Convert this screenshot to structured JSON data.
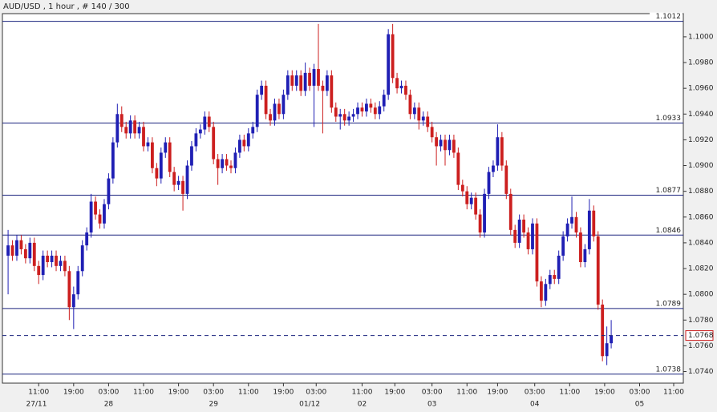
{
  "chart_data": {
    "type": "candlestick",
    "title": "AUD/USD , 1 hour , # 140 / 300",
    "up_color": "#1f1fb4",
    "down_color": "#cc1f1f",
    "level_color": "#1a237e",
    "ylim": [
      1.0731,
      1.1018
    ],
    "xlim": [
      -1.3,
      154.5
    ],
    "yticks": [
      {
        "value": 1.074,
        "label": "1.0740"
      },
      {
        "value": 1.076,
        "label": "1.0760"
      },
      {
        "value": 1.078,
        "label": "1.0780"
      },
      {
        "value": 1.08,
        "label": "1.0800"
      },
      {
        "value": 1.082,
        "label": "1.0820"
      },
      {
        "value": 1.084,
        "label": "1.0840"
      },
      {
        "value": 1.086,
        "label": "1.0860"
      },
      {
        "value": 1.088,
        "label": "1.0880"
      },
      {
        "value": 1.09,
        "label": "1.0900"
      },
      {
        "value": 1.092,
        "label": "1.0920"
      },
      {
        "value": 1.094,
        "label": "1.0940"
      },
      {
        "value": 1.096,
        "label": "1.0960"
      },
      {
        "value": 1.098,
        "label": "1.0980"
      },
      {
        "value": 1.1,
        "label": "1.1000"
      }
    ],
    "xticks": [
      {
        "value": 7,
        "label": "11:00"
      },
      {
        "value": 15,
        "label": "19:00"
      },
      {
        "value": 23,
        "label": "03:00"
      },
      {
        "value": 31,
        "label": "11:00"
      },
      {
        "value": 39,
        "label": "19:00"
      },
      {
        "value": 47,
        "label": "03:00"
      },
      {
        "value": 55,
        "label": "11:00"
      },
      {
        "value": 63,
        "label": "19:00"
      },
      {
        "value": 70.5,
        "label": "03:00"
      },
      {
        "value": 81,
        "label": "11:00"
      },
      {
        "value": 88.5,
        "label": "19:00"
      },
      {
        "value": 97,
        "label": "03:00"
      },
      {
        "value": 105,
        "label": "11:00"
      },
      {
        "value": 112,
        "label": "19:00"
      },
      {
        "value": 120.5,
        "label": "03:00"
      },
      {
        "value": 128.5,
        "label": "11:00"
      },
      {
        "value": 136.5,
        "label": "19:00"
      },
      {
        "value": 144.5,
        "label": "03:00"
      },
      {
        "value": 152.3,
        "label": "11:00"
      }
    ],
    "date_labels": [
      {
        "value": 6.5,
        "label": "27/11"
      },
      {
        "value": 23,
        "label": "28"
      },
      {
        "value": 47,
        "label": "29"
      },
      {
        "value": 69,
        "label": "01/12"
      },
      {
        "value": 81,
        "label": "02"
      },
      {
        "value": 97,
        "label": "03"
      },
      {
        "value": 120.5,
        "label": "04"
      },
      {
        "value": 144.5,
        "label": "05"
      }
    ],
    "levels": [
      1.1012,
      1.0933,
      1.0877,
      1.0846,
      1.0789,
      1.0738
    ],
    "last_price": 1.0768,
    "ohlc": [
      [
        1.083,
        1.085,
        1.08,
        1.0838
      ],
      [
        1.0838,
        1.0842,
        1.0826,
        1.083
      ],
      [
        1.083,
        1.0846,
        1.0826,
        1.0842
      ],
      [
        1.0842,
        1.0846,
        1.0831,
        1.0835
      ],
      [
        1.0835,
        1.0839,
        1.0824,
        1.0828
      ],
      [
        1.0828,
        1.0844,
        1.0824,
        1.084
      ],
      [
        1.084,
        1.0844,
        1.0818,
        1.0822
      ],
      [
        1.0822,
        1.0826,
        1.0808,
        1.0815
      ],
      [
        1.0815,
        1.0834,
        1.0811,
        1.083
      ],
      [
        1.083,
        1.0834,
        1.0821,
        1.0825
      ],
      [
        1.0825,
        1.0834,
        1.0821,
        1.083
      ],
      [
        1.083,
        1.0834,
        1.0818,
        1.0822
      ],
      [
        1.0822,
        1.083,
        1.0818,
        1.0826
      ],
      [
        1.0826,
        1.083,
        1.0814,
        1.0818
      ],
      [
        1.0818,
        1.0822,
        1.078,
        1.079
      ],
      [
        1.079,
        1.0806,
        1.0773,
        1.08
      ],
      [
        1.08,
        1.0822,
        1.0796,
        1.0818
      ],
      [
        1.0818,
        1.0842,
        1.0814,
        1.0838
      ],
      [
        1.0838,
        1.0852,
        1.0834,
        1.0848
      ],
      [
        1.0848,
        1.0878,
        1.0844,
        1.0872
      ],
      [
        1.0872,
        1.0876,
        1.0858,
        1.0862
      ],
      [
        1.0862,
        1.0866,
        1.0851,
        1.0855
      ],
      [
        1.0855,
        1.0874,
        1.0851,
        1.087
      ],
      [
        1.087,
        1.0894,
        1.0866,
        1.089
      ],
      [
        1.089,
        1.0922,
        1.0886,
        1.0918
      ],
      [
        1.0918,
        1.0948,
        1.0914,
        1.094
      ],
      [
        1.094,
        1.0946,
        1.0926,
        1.093
      ],
      [
        1.093,
        1.0934,
        1.0921,
        1.0925
      ],
      [
        1.0925,
        1.0939,
        1.0921,
        1.0935
      ],
      [
        1.0935,
        1.0939,
        1.0921,
        1.0925
      ],
      [
        1.0925,
        1.0934,
        1.0921,
        1.093
      ],
      [
        1.093,
        1.0934,
        1.0911,
        1.0915
      ],
      [
        1.0915,
        1.0922,
        1.0911,
        1.0918
      ],
      [
        1.0918,
        1.0922,
        1.0894,
        1.0898
      ],
      [
        1.0898,
        1.0902,
        1.0884,
        1.089
      ],
      [
        1.089,
        1.0914,
        1.0886,
        1.091
      ],
      [
        1.091,
        1.0922,
        1.0906,
        1.0918
      ],
      [
        1.0918,
        1.0922,
        1.0891,
        1.0895
      ],
      [
        1.0895,
        1.0899,
        1.088,
        1.0885
      ],
      [
        1.0885,
        1.0892,
        1.0881,
        1.0888
      ],
      [
        1.0888,
        1.0892,
        1.0865,
        1.0878
      ],
      [
        1.0878,
        1.0904,
        1.0874,
        1.09
      ],
      [
        1.09,
        1.0919,
        1.0896,
        1.0915
      ],
      [
        1.0915,
        1.0929,
        1.0911,
        1.0925
      ],
      [
        1.0925,
        1.0932,
        1.0921,
        1.0928
      ],
      [
        1.0928,
        1.0942,
        1.0924,
        1.0938
      ],
      [
        1.0938,
        1.0942,
        1.0926,
        1.093
      ],
      [
        1.093,
        1.0934,
        1.0901,
        1.0905
      ],
      [
        1.0905,
        1.0909,
        1.0885,
        1.0898
      ],
      [
        1.0898,
        1.0909,
        1.0894,
        1.0905
      ],
      [
        1.0905,
        1.0909,
        1.0896,
        1.09
      ],
      [
        1.09,
        1.0904,
        1.0894,
        1.0898
      ],
      [
        1.0898,
        1.0914,
        1.0894,
        1.091
      ],
      [
        1.091,
        1.0924,
        1.0906,
        1.092
      ],
      [
        1.092,
        1.0924,
        1.0911,
        1.0915
      ],
      [
        1.0915,
        1.0929,
        1.0911,
        1.0925
      ],
      [
        1.0925,
        1.0934,
        1.0921,
        1.093
      ],
      [
        1.093,
        1.0959,
        1.0926,
        1.0955
      ],
      [
        1.0955,
        1.0966,
        1.0951,
        1.0962
      ],
      [
        1.0962,
        1.0966,
        1.0936,
        1.094
      ],
      [
        1.094,
        1.0944,
        1.0931,
        1.0935
      ],
      [
        1.0935,
        1.0952,
        1.0931,
        1.0948
      ],
      [
        1.0948,
        1.0952,
        1.0936,
        1.094
      ],
      [
        1.094,
        1.0959,
        1.0936,
        1.0955
      ],
      [
        1.0955,
        1.0974,
        1.0951,
        1.097
      ],
      [
        1.097,
        1.0974,
        1.0958,
        1.0962
      ],
      [
        1.0962,
        1.0974,
        1.0958,
        1.097
      ],
      [
        1.097,
        1.0974,
        1.0954,
        1.0958
      ],
      [
        1.0958,
        1.098,
        1.0954,
        1.0972
      ],
      [
        1.0972,
        1.0976,
        1.0958,
        1.0962
      ],
      [
        1.0962,
        1.0979,
        1.093,
        1.0975
      ],
      [
        1.0975,
        1.101,
        1.0958,
        1.0962
      ],
      [
        1.0962,
        1.0966,
        1.0925,
        1.0958
      ],
      [
        1.0958,
        1.0974,
        1.0954,
        1.097
      ],
      [
        1.097,
        1.0974,
        1.0941,
        1.0945
      ],
      [
        1.0945,
        1.0949,
        1.0934,
        1.0938
      ],
      [
        1.0938,
        1.0944,
        1.0928,
        1.094
      ],
      [
        1.094,
        1.0944,
        1.0931,
        1.0935
      ],
      [
        1.0935,
        1.0942,
        1.0931,
        1.0938
      ],
      [
        1.0938,
        1.0944,
        1.0934,
        1.094
      ],
      [
        1.094,
        1.0949,
        1.0936,
        1.0945
      ],
      [
        1.0945,
        1.0949,
        1.0938,
        1.0942
      ],
      [
        1.0942,
        1.0952,
        1.0938,
        1.0948
      ],
      [
        1.0948,
        1.0952,
        1.0941,
        1.0945
      ],
      [
        1.0945,
        1.0949,
        1.0936,
        1.094
      ],
      [
        1.094,
        1.095,
        1.0936,
        1.0946
      ],
      [
        1.0946,
        1.0959,
        1.0942,
        1.0955
      ],
      [
        1.0955,
        1.1006,
        1.0951,
        1.1002
      ],
      [
        1.1002,
        1.101,
        1.0964,
        1.0968
      ],
      [
        1.0968,
        1.0972,
        1.0956,
        1.096
      ],
      [
        1.096,
        1.0966,
        1.0956,
        1.0962
      ],
      [
        1.0962,
        1.0966,
        1.0951,
        1.0955
      ],
      [
        1.0955,
        1.0959,
        1.0936,
        1.094
      ],
      [
        1.094,
        1.0949,
        1.0936,
        1.0945
      ],
      [
        1.0945,
        1.0949,
        1.0928,
        1.0935
      ],
      [
        1.0935,
        1.0942,
        1.0931,
        1.0938
      ],
      [
        1.0938,
        1.0942,
        1.0926,
        1.093
      ],
      [
        1.093,
        1.0934,
        1.0918,
        1.0922
      ],
      [
        1.0922,
        1.0926,
        1.09,
        1.0915
      ],
      [
        1.0915,
        1.0924,
        1.0911,
        1.092
      ],
      [
        1.092,
        1.0924,
        1.09,
        1.0912
      ],
      [
        1.0912,
        1.0924,
        1.0908,
        1.092
      ],
      [
        1.092,
        1.0924,
        1.0906,
        1.091
      ],
      [
        1.091,
        1.0914,
        1.0881,
        1.0885
      ],
      [
        1.0885,
        1.0889,
        1.0876,
        1.088
      ],
      [
        1.088,
        1.0884,
        1.0866,
        1.087
      ],
      [
        1.087,
        1.0879,
        1.0866,
        1.0875
      ],
      [
        1.0875,
        1.0879,
        1.0858,
        1.0862
      ],
      [
        1.0862,
        1.0866,
        1.0844,
        1.0848
      ],
      [
        1.0848,
        1.0882,
        1.0844,
        1.0878
      ],
      [
        1.0878,
        1.0899,
        1.0874,
        1.0895
      ],
      [
        1.0895,
        1.0904,
        1.0891,
        1.09
      ],
      [
        1.09,
        1.0932,
        1.0896,
        1.0922
      ],
      [
        1.0922,
        1.0926,
        1.0896,
        1.09
      ],
      [
        1.09,
        1.0904,
        1.0874,
        1.0878
      ],
      [
        1.0878,
        1.0882,
        1.0846,
        1.085
      ],
      [
        1.085,
        1.0854,
        1.0836,
        1.084
      ],
      [
        1.084,
        1.0862,
        1.0836,
        1.0858
      ],
      [
        1.0858,
        1.0862,
        1.0844,
        1.0848
      ],
      [
        1.0848,
        1.0852,
        1.0831,
        1.0835
      ],
      [
        1.0835,
        1.0859,
        1.0831,
        1.0855
      ],
      [
        1.0855,
        1.0859,
        1.0806,
        1.081
      ],
      [
        1.081,
        1.0814,
        1.079,
        1.0795
      ],
      [
        1.0795,
        1.0812,
        1.0791,
        1.0808
      ],
      [
        1.0808,
        1.0819,
        1.0804,
        1.0815
      ],
      [
        1.0815,
        1.0819,
        1.0808,
        1.0812
      ],
      [
        1.0812,
        1.0834,
        1.0808,
        1.083
      ],
      [
        1.083,
        1.0849,
        1.0826,
        1.0845
      ],
      [
        1.0845,
        1.0859,
        1.0841,
        1.0855
      ],
      [
        1.0855,
        1.0876,
        1.0851,
        1.086
      ],
      [
        1.086,
        1.0864,
        1.0844,
        1.0848
      ],
      [
        1.0848,
        1.0852,
        1.0821,
        1.0825
      ],
      [
        1.0825,
        1.0839,
        1.0821,
        1.0835
      ],
      [
        1.0835,
        1.0874,
        1.0831,
        1.0865
      ],
      [
        1.0865,
        1.0869,
        1.0841,
        1.0845
      ],
      [
        1.0845,
        1.0849,
        1.0788,
        1.0792
      ],
      [
        1.0792,
        1.0796,
        1.0748,
        1.0752
      ],
      [
        1.0752,
        1.0775,
        1.0745,
        1.0762
      ],
      [
        1.0762,
        1.078,
        1.0758,
        1.0768
      ]
    ]
  }
}
